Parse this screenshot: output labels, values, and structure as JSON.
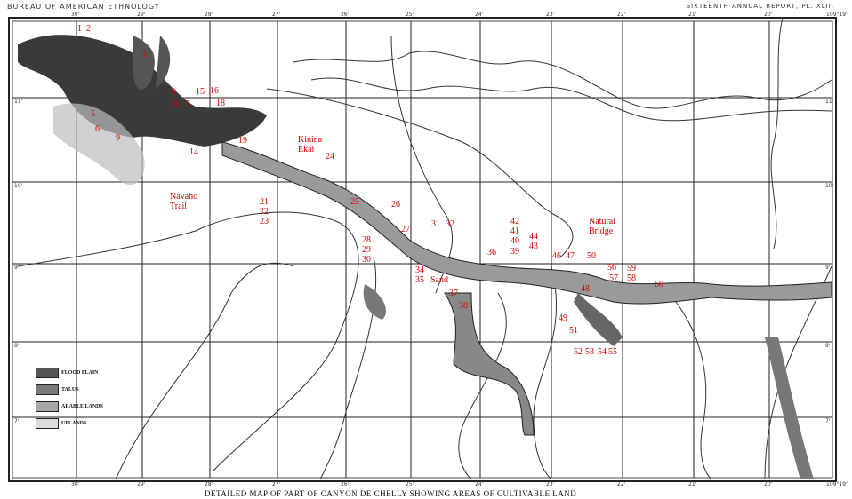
{
  "header": {
    "left": "BUREAU OF AMERICAN ETHNOLOGY",
    "right": "SIXTEENTH ANNUAL REPORT, PL. XLII."
  },
  "footer": {
    "title": "DETAILED MAP OF PART OF CANYON DE CHELLY SHOWING AREAS OF CULTIVABLE LAND"
  },
  "ticks": {
    "top": [
      "30'",
      "29'",
      "28'",
      "27'",
      "26'",
      "25'",
      "24'",
      "23'",
      "22'",
      "21'",
      "20'",
      "109°19'"
    ],
    "left": [
      "11'",
      "10'",
      "9'",
      "8'",
      "7'"
    ]
  },
  "legend": [
    {
      "label": "FLOOD PLAIN",
      "color": "#555555"
    },
    {
      "label": "TALUS",
      "color": "#7a7a7a"
    },
    {
      "label": "ARABLE LANDS",
      "color": "#a8a8a8"
    },
    {
      "label": "UPLANDS",
      "color": "#dcdcdc"
    }
  ],
  "colors": {
    "labels": "#d40000",
    "flood_plain": "#3a3a3a",
    "arable": "#9a9a9a"
  },
  "places": {
    "kinina_ekai": "Kinina\nEkai",
    "navaho_trail": "Navaho\nTrail",
    "sand": "Sand",
    "natural_bridge": "Natural\nBridge"
  },
  "site_numbers": [
    "1",
    "2",
    "3",
    "5",
    "6",
    "9",
    "10",
    "11",
    "13",
    "14",
    "15",
    "16",
    "18",
    "19",
    "21",
    "22",
    "23",
    "24",
    "25",
    "26",
    "27",
    "28",
    "29",
    "30",
    "31",
    "32",
    "34",
    "35",
    "36",
    "37",
    "38",
    "39",
    "40",
    "41",
    "42",
    "43",
    "44",
    "46",
    "47",
    "48",
    "49",
    "50",
    "51",
    "52",
    "53",
    "54",
    "55",
    "56",
    "57",
    "58",
    "59",
    "60"
  ]
}
